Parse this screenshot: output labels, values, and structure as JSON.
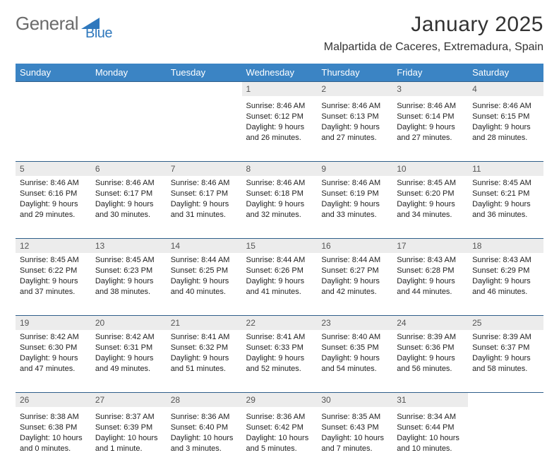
{
  "brand": {
    "part1": "General",
    "part2": "Blue"
  },
  "title": "January 2025",
  "location": "Malpartida de Caceres, Extremadura, Spain",
  "colors": {
    "header_bg": "#3b84c4",
    "header_text": "#ffffff",
    "daynum_bg": "#ececec",
    "daynum_text": "#555555",
    "cell_text": "#222222",
    "rule": "#2f5e8a",
    "logo_gray": "#6b6b6b",
    "logo_blue": "#2f78bd",
    "page_bg": "#ffffff"
  },
  "typography": {
    "title_fontsize": 30,
    "location_fontsize": 16,
    "header_fontsize": 13,
    "daynum_fontsize": 12,
    "cell_fontsize": 11
  },
  "weekdays": [
    "Sunday",
    "Monday",
    "Tuesday",
    "Wednesday",
    "Thursday",
    "Friday",
    "Saturday"
  ],
  "weeks": [
    [
      null,
      null,
      null,
      {
        "n": "1",
        "sr": "Sunrise: 8:46 AM",
        "ss": "Sunset: 6:12 PM",
        "dl1": "Daylight: 9 hours",
        "dl2": "and 26 minutes."
      },
      {
        "n": "2",
        "sr": "Sunrise: 8:46 AM",
        "ss": "Sunset: 6:13 PM",
        "dl1": "Daylight: 9 hours",
        "dl2": "and 27 minutes."
      },
      {
        "n": "3",
        "sr": "Sunrise: 8:46 AM",
        "ss": "Sunset: 6:14 PM",
        "dl1": "Daylight: 9 hours",
        "dl2": "and 27 minutes."
      },
      {
        "n": "4",
        "sr": "Sunrise: 8:46 AM",
        "ss": "Sunset: 6:15 PM",
        "dl1": "Daylight: 9 hours",
        "dl2": "and 28 minutes."
      }
    ],
    [
      {
        "n": "5",
        "sr": "Sunrise: 8:46 AM",
        "ss": "Sunset: 6:16 PM",
        "dl1": "Daylight: 9 hours",
        "dl2": "and 29 minutes."
      },
      {
        "n": "6",
        "sr": "Sunrise: 8:46 AM",
        "ss": "Sunset: 6:17 PM",
        "dl1": "Daylight: 9 hours",
        "dl2": "and 30 minutes."
      },
      {
        "n": "7",
        "sr": "Sunrise: 8:46 AM",
        "ss": "Sunset: 6:17 PM",
        "dl1": "Daylight: 9 hours",
        "dl2": "and 31 minutes."
      },
      {
        "n": "8",
        "sr": "Sunrise: 8:46 AM",
        "ss": "Sunset: 6:18 PM",
        "dl1": "Daylight: 9 hours",
        "dl2": "and 32 minutes."
      },
      {
        "n": "9",
        "sr": "Sunrise: 8:46 AM",
        "ss": "Sunset: 6:19 PM",
        "dl1": "Daylight: 9 hours",
        "dl2": "and 33 minutes."
      },
      {
        "n": "10",
        "sr": "Sunrise: 8:45 AM",
        "ss": "Sunset: 6:20 PM",
        "dl1": "Daylight: 9 hours",
        "dl2": "and 34 minutes."
      },
      {
        "n": "11",
        "sr": "Sunrise: 8:45 AM",
        "ss": "Sunset: 6:21 PM",
        "dl1": "Daylight: 9 hours",
        "dl2": "and 36 minutes."
      }
    ],
    [
      {
        "n": "12",
        "sr": "Sunrise: 8:45 AM",
        "ss": "Sunset: 6:22 PM",
        "dl1": "Daylight: 9 hours",
        "dl2": "and 37 minutes."
      },
      {
        "n": "13",
        "sr": "Sunrise: 8:45 AM",
        "ss": "Sunset: 6:23 PM",
        "dl1": "Daylight: 9 hours",
        "dl2": "and 38 minutes."
      },
      {
        "n": "14",
        "sr": "Sunrise: 8:44 AM",
        "ss": "Sunset: 6:25 PM",
        "dl1": "Daylight: 9 hours",
        "dl2": "and 40 minutes."
      },
      {
        "n": "15",
        "sr": "Sunrise: 8:44 AM",
        "ss": "Sunset: 6:26 PM",
        "dl1": "Daylight: 9 hours",
        "dl2": "and 41 minutes."
      },
      {
        "n": "16",
        "sr": "Sunrise: 8:44 AM",
        "ss": "Sunset: 6:27 PM",
        "dl1": "Daylight: 9 hours",
        "dl2": "and 42 minutes."
      },
      {
        "n": "17",
        "sr": "Sunrise: 8:43 AM",
        "ss": "Sunset: 6:28 PM",
        "dl1": "Daylight: 9 hours",
        "dl2": "and 44 minutes."
      },
      {
        "n": "18",
        "sr": "Sunrise: 8:43 AM",
        "ss": "Sunset: 6:29 PM",
        "dl1": "Daylight: 9 hours",
        "dl2": "and 46 minutes."
      }
    ],
    [
      {
        "n": "19",
        "sr": "Sunrise: 8:42 AM",
        "ss": "Sunset: 6:30 PM",
        "dl1": "Daylight: 9 hours",
        "dl2": "and 47 minutes."
      },
      {
        "n": "20",
        "sr": "Sunrise: 8:42 AM",
        "ss": "Sunset: 6:31 PM",
        "dl1": "Daylight: 9 hours",
        "dl2": "and 49 minutes."
      },
      {
        "n": "21",
        "sr": "Sunrise: 8:41 AM",
        "ss": "Sunset: 6:32 PM",
        "dl1": "Daylight: 9 hours",
        "dl2": "and 51 minutes."
      },
      {
        "n": "22",
        "sr": "Sunrise: 8:41 AM",
        "ss": "Sunset: 6:33 PM",
        "dl1": "Daylight: 9 hours",
        "dl2": "and 52 minutes."
      },
      {
        "n": "23",
        "sr": "Sunrise: 8:40 AM",
        "ss": "Sunset: 6:35 PM",
        "dl1": "Daylight: 9 hours",
        "dl2": "and 54 minutes."
      },
      {
        "n": "24",
        "sr": "Sunrise: 8:39 AM",
        "ss": "Sunset: 6:36 PM",
        "dl1": "Daylight: 9 hours",
        "dl2": "and 56 minutes."
      },
      {
        "n": "25",
        "sr": "Sunrise: 8:39 AM",
        "ss": "Sunset: 6:37 PM",
        "dl1": "Daylight: 9 hours",
        "dl2": "and 58 minutes."
      }
    ],
    [
      {
        "n": "26",
        "sr": "Sunrise: 8:38 AM",
        "ss": "Sunset: 6:38 PM",
        "dl1": "Daylight: 10 hours",
        "dl2": "and 0 minutes."
      },
      {
        "n": "27",
        "sr": "Sunrise: 8:37 AM",
        "ss": "Sunset: 6:39 PM",
        "dl1": "Daylight: 10 hours",
        "dl2": "and 1 minute."
      },
      {
        "n": "28",
        "sr": "Sunrise: 8:36 AM",
        "ss": "Sunset: 6:40 PM",
        "dl1": "Daylight: 10 hours",
        "dl2": "and 3 minutes."
      },
      {
        "n": "29",
        "sr": "Sunrise: 8:36 AM",
        "ss": "Sunset: 6:42 PM",
        "dl1": "Daylight: 10 hours",
        "dl2": "and 5 minutes."
      },
      {
        "n": "30",
        "sr": "Sunrise: 8:35 AM",
        "ss": "Sunset: 6:43 PM",
        "dl1": "Daylight: 10 hours",
        "dl2": "and 7 minutes."
      },
      {
        "n": "31",
        "sr": "Sunrise: 8:34 AM",
        "ss": "Sunset: 6:44 PM",
        "dl1": "Daylight: 10 hours",
        "dl2": "and 10 minutes."
      },
      null
    ]
  ]
}
